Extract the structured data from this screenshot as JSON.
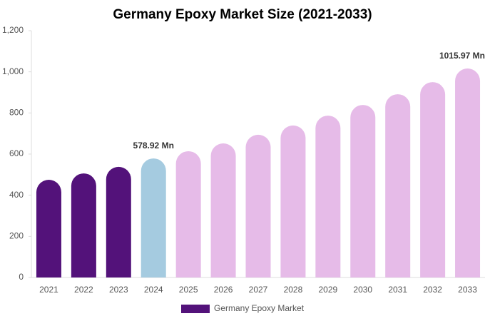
{
  "chart_data": {
    "type": "bar",
    "title": "Germany Epoxy Market Size (2021-2033)",
    "categories": [
      "2021",
      "2022",
      "2023",
      "2024",
      "2025",
      "2026",
      "2027",
      "2028",
      "2029",
      "2030",
      "2031",
      "2032",
      "2033"
    ],
    "series": [
      {
        "name": "Germany Epoxy Market",
        "color": "#53127a",
        "colors": [
          "#53127a",
          "#53127a",
          "#53127a",
          "#a5cbe0",
          "#e6bbe8",
          "#e6bbe8",
          "#e6bbe8",
          "#e6bbe8",
          "#e6bbe8",
          "#e6bbe8",
          "#e6bbe8",
          "#e6bbe8",
          "#e6bbe8"
        ],
        "values": [
          475,
          506,
          538,
          578.92,
          614,
          652,
          694,
          739,
          787,
          839,
          891,
          950,
          1015.97
        ],
        "value_labels": [
          null,
          null,
          null,
          "578.92 Mn",
          null,
          null,
          null,
          null,
          null,
          null,
          null,
          null,
          "1015.97 Mn"
        ]
      }
    ],
    "ylim": [
      0,
      1200
    ],
    "yticks": [
      0,
      200,
      400,
      600,
      800,
      {
        "value": 1000,
        "label": "1,000"
      },
      {
        "value": 1200,
        "label": "1,200"
      }
    ],
    "grid": false
  }
}
